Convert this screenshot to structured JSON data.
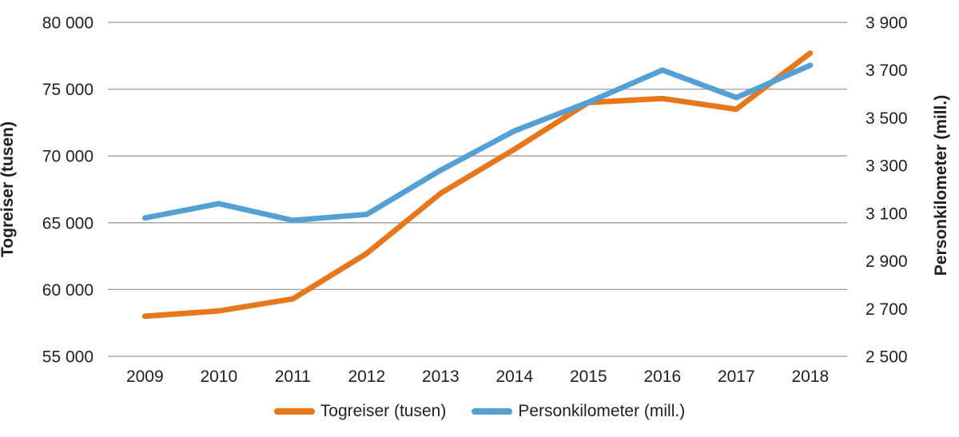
{
  "chart_data": {
    "type": "line",
    "title": "",
    "x_labels": [
      "2009",
      "2010",
      "2011",
      "2012",
      "2013",
      "2014",
      "2015",
      "2016",
      "2017",
      "2018"
    ],
    "left_axis": {
      "title": "Togreiser (tusen)",
      "range": [
        55000,
        80000
      ],
      "ticks": [
        {
          "v": 80000,
          "label": "80 000"
        },
        {
          "v": 75000,
          "label": "75 000"
        },
        {
          "v": 70000,
          "label": "70 000"
        },
        {
          "v": 65000,
          "label": "65 000"
        },
        {
          "v": 60000,
          "label": "60 000"
        },
        {
          "v": 55000,
          "label": "55 000"
        }
      ],
      "gridlines": true
    },
    "right_axis": {
      "title": "Personkilometer (mill.)",
      "range": [
        2500,
        3900
      ],
      "ticks": [
        {
          "v": 3900,
          "label": "3 900"
        },
        {
          "v": 3700,
          "label": "3 700"
        },
        {
          "v": 3500,
          "label": "3 500"
        },
        {
          "v": 3300,
          "label": "3 300"
        },
        {
          "v": 3100,
          "label": "3 100"
        },
        {
          "v": 2900,
          "label": "2 900"
        },
        {
          "v": 2700,
          "label": "2 700"
        },
        {
          "v": 2500,
          "label": "2 500"
        }
      ],
      "gridlines": false
    },
    "series": [
      {
        "name": "Togreiser (tusen)",
        "axis": "left",
        "color": "#E8761B",
        "values": [
          58000,
          58400,
          59300,
          62700,
          67200,
          70500,
          74000,
          74300,
          73500,
          77700
        ]
      },
      {
        "name": "Personkilometer (mill.)",
        "axis": "right",
        "color": "#54A0D4",
        "values": [
          3080,
          3140,
          3070,
          3095,
          3280,
          3445,
          3565,
          3700,
          3585,
          3720
        ]
      }
    ],
    "legend_position": "bottom",
    "colors": {
      "gridline": "#9C9C9C",
      "text": "#212121"
    }
  }
}
